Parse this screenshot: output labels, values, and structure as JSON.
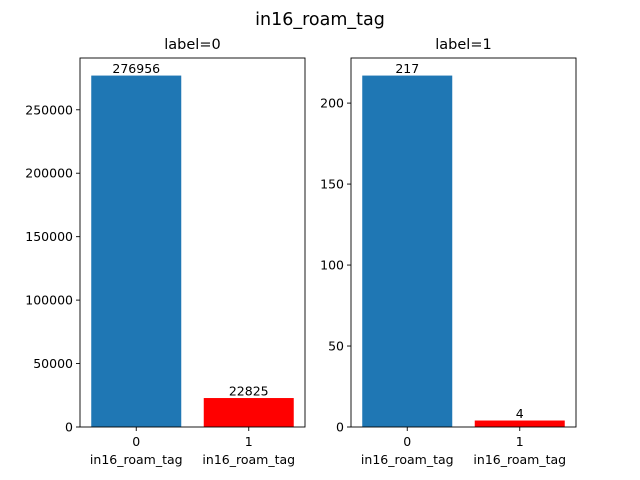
{
  "figure": {
    "suptitle": "in16_roam_tag"
  },
  "colors": {
    "bar_category_0": "#1f77b4",
    "bar_category_1": "#ff0000",
    "axis": "#000000",
    "background": "#ffffff"
  },
  "chart_data": [
    {
      "type": "bar",
      "title": "label=0",
      "categories": [
        "0",
        "1"
      ],
      "category_sublabel": "in16_roam_tag",
      "values": [
        276956,
        22825
      ],
      "value_labels": [
        "276956",
        "22825"
      ],
      "yticks": [
        0,
        50000,
        100000,
        150000,
        200000,
        250000
      ],
      "ylim": [
        0,
        290804
      ],
      "xlabel": "",
      "ylabel": "",
      "grid": false,
      "bar_colors": [
        "#1f77b4",
        "#ff0000"
      ]
    },
    {
      "type": "bar",
      "title": "label=1",
      "categories": [
        "0",
        "1"
      ],
      "category_sublabel": "in16_roam_tag",
      "values": [
        217,
        4
      ],
      "value_labels": [
        "217",
        "4"
      ],
      "yticks": [
        0,
        50,
        100,
        150,
        200
      ],
      "ylim": [
        0,
        227.85
      ],
      "xlabel": "",
      "ylabel": "",
      "grid": false,
      "bar_colors": [
        "#1f77b4",
        "#ff0000"
      ]
    }
  ]
}
